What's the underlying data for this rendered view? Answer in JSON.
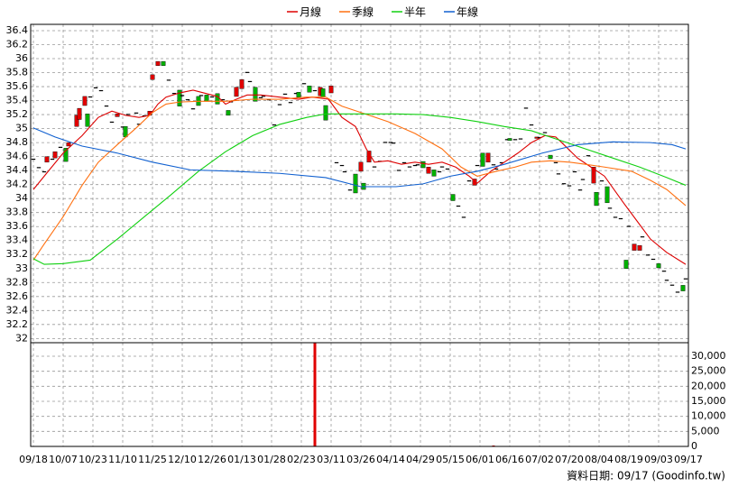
{
  "chart_data": [
    {
      "type": "candlestick",
      "grid": true,
      "legend_position": "top",
      "up_color": "#e00000",
      "down_color": "#00b000",
      "flat_color": "#000000",
      "xlim": [
        0,
        243
      ],
      "xticks": [
        {
          "value": 1,
          "label": "09/18"
        },
        {
          "value": 12,
          "label": "10/07"
        },
        {
          "value": 23,
          "label": "10/23"
        },
        {
          "value": 34,
          "label": "11/10"
        },
        {
          "value": 45,
          "label": "11/25"
        },
        {
          "value": 56,
          "label": "12/10"
        },
        {
          "value": 67,
          "label": "12/26"
        },
        {
          "value": 78,
          "label": "01/13"
        },
        {
          "value": 89,
          "label": "01/28"
        },
        {
          "value": 100,
          "label": "02/23"
        },
        {
          "value": 111,
          "label": "03/11"
        },
        {
          "value": 122,
          "label": "03/26"
        },
        {
          "value": 133,
          "label": "04/14"
        },
        {
          "value": 144,
          "label": "04/29"
        },
        {
          "value": 155,
          "label": "05/15"
        },
        {
          "value": 166,
          "label": "06/01"
        },
        {
          "value": 177,
          "label": "06/16"
        },
        {
          "value": 188,
          "label": "07/02"
        },
        {
          "value": 199,
          "label": "07/20"
        },
        {
          "value": 210,
          "label": "08/04"
        },
        {
          "value": 221,
          "label": "08/19"
        },
        {
          "value": 232,
          "label": "09/03"
        },
        {
          "value": 243,
          "label": "09/17"
        }
      ],
      "ylim": [
        31.94,
        36.49
      ],
      "yticks": [
        32,
        32.2,
        32.4,
        32.6,
        32.8,
        33,
        33.2,
        33.4,
        33.6,
        33.8,
        34,
        34.2,
        34.4,
        34.6,
        34.8,
        35,
        35.2,
        35.4,
        35.6,
        35.8,
        36,
        36.2,
        36.4
      ],
      "candles": {
        "x": [
          1,
          3,
          5,
          6,
          8,
          9,
          11,
          13,
          14,
          17,
          18,
          20,
          21,
          22,
          24,
          26,
          28,
          30,
          32,
          34,
          35,
          36,
          39,
          40,
          42,
          44,
          45,
          47,
          49,
          51,
          53,
          55,
          56,
          58,
          60,
          62,
          63,
          65,
          67,
          69,
          71,
          73,
          74,
          76,
          78,
          80,
          81,
          83,
          85,
          86,
          88,
          90,
          92,
          94,
          96,
          98,
          99,
          101,
          103,
          105,
          107,
          108,
          109,
          111,
          113,
          115,
          116,
          118,
          120,
          122,
          123,
          125,
          127,
          129,
          131,
          133,
          134,
          136,
          138,
          140,
          142,
          143,
          145,
          147,
          149,
          151,
          152,
          154,
          156,
          158,
          160,
          162,
          164,
          165,
          167,
          169,
          171,
          172,
          174,
          176,
          177,
          179,
          181,
          183,
          185,
          187,
          188,
          190,
          192,
          194,
          195,
          197,
          199,
          201,
          203,
          204,
          206,
          208,
          209,
          211,
          213,
          214,
          216,
          218,
          220,
          221,
          223,
          225,
          226,
          228,
          230,
          232,
          234,
          235,
          237,
          239,
          241,
          242
        ],
        "open": [
          34.57,
          34.45,
          34.39,
          34.52,
          34.57,
          34.58,
          34.74,
          34.72,
          34.75,
          35.03,
          35.13,
          35.33,
          35.21,
          35.46,
          35.59,
          35.55,
          35.33,
          35.1,
          35.17,
          35.03,
          35.03,
          35.21,
          35.23,
          35.07,
          35.19,
          35.19,
          35.7,
          35.9,
          35.96,
          35.7,
          35.51,
          35.55,
          35.48,
          35.42,
          35.29,
          35.46,
          35.48,
          35.48,
          35.46,
          35.5,
          35.42,
          35.26,
          35.39,
          35.46,
          35.57,
          35.81,
          35.68,
          35.59,
          35.45,
          35.47,
          35.42,
          35.06,
          35.35,
          35.5,
          35.38,
          35.51,
          35.52,
          35.65,
          35.61,
          35.55,
          35.47,
          35.57,
          35.33,
          35.51,
          34.52,
          34.48,
          34.39,
          34.13,
          34.35,
          34.39,
          34.22,
          34.52,
          34.46,
          34.54,
          34.81,
          34.81,
          34.8,
          34.41,
          34.52,
          34.46,
          34.48,
          34.49,
          34.53,
          34.36,
          34.41,
          34.39,
          34.46,
          34.43,
          34.06,
          33.9,
          33.74,
          34.26,
          34.19,
          34.48,
          34.65,
          34.52,
          34.49,
          34.43,
          34.52,
          34.85,
          34.86,
          34.85,
          34.86,
          35.3,
          35.06,
          34.86,
          34.88,
          34.95,
          34.62,
          34.52,
          34.36,
          34.22,
          34.19,
          34.39,
          34.13,
          34.28,
          34.62,
          34.22,
          34.09,
          34.26,
          34.17,
          33.87,
          33.74,
          33.72,
          33.12,
          33.61,
          33.26,
          33.26,
          33.46,
          33.2,
          33.14,
          33.07,
          32.97,
          32.84,
          32.77,
          32.67,
          32.76,
          32.86
        ],
        "close": [
          34.57,
          34.45,
          34.39,
          34.6,
          34.57,
          34.67,
          34.74,
          34.53,
          34.8,
          35.19,
          35.29,
          35.46,
          35.03,
          35.46,
          35.59,
          35.55,
          35.33,
          35.1,
          35.21,
          35.03,
          34.88,
          35.21,
          35.23,
          35.07,
          35.19,
          35.25,
          35.77,
          35.96,
          35.9,
          35.7,
          35.51,
          35.32,
          35.48,
          35.42,
          35.29,
          35.33,
          35.48,
          35.39,
          35.46,
          35.35,
          35.42,
          35.19,
          35.39,
          35.59,
          35.7,
          35.81,
          35.68,
          35.39,
          35.45,
          35.47,
          35.42,
          35.06,
          35.35,
          35.5,
          35.38,
          35.51,
          35.45,
          35.65,
          35.52,
          35.55,
          35.59,
          35.45,
          35.12,
          35.61,
          34.52,
          34.48,
          34.39,
          34.13,
          34.08,
          34.52,
          34.13,
          34.68,
          34.46,
          34.54,
          34.81,
          34.81,
          34.8,
          34.41,
          34.52,
          34.46,
          34.48,
          34.49,
          34.44,
          34.45,
          34.32,
          34.39,
          34.46,
          34.43,
          33.97,
          33.9,
          33.74,
          34.26,
          34.28,
          34.48,
          34.46,
          34.65,
          34.49,
          34.43,
          34.52,
          34.85,
          34.83,
          34.85,
          34.86,
          35.3,
          35.06,
          34.88,
          34.88,
          34.95,
          34.57,
          34.52,
          34.36,
          34.22,
          34.19,
          34.39,
          34.13,
          34.28,
          34.62,
          34.45,
          33.9,
          34.26,
          33.94,
          33.87,
          33.74,
          33.72,
          33.0,
          33.61,
          33.35,
          33.33,
          33.46,
          33.2,
          33.14,
          33.01,
          32.97,
          32.84,
          32.77,
          32.67,
          32.68,
          32.86
        ]
      },
      "series": [
        {
          "name": "月線",
          "color": "#dd0000",
          "x": [
            1,
            5,
            12,
            19,
            25,
            30,
            35,
            40,
            44,
            47,
            50,
            55,
            60,
            64,
            69,
            72,
            76,
            80,
            85,
            92,
            99,
            104,
            110,
            115,
            120,
            124,
            127,
            132,
            137,
            142,
            147,
            152,
            157,
            162,
            165,
            170,
            175,
            180,
            185,
            190,
            194,
            197,
            202,
            207,
            212,
            219,
            224,
            229,
            235,
            242
          ],
          "values": [
            34.13,
            34.32,
            34.65,
            34.9,
            35.16,
            35.25,
            35.19,
            35.16,
            35.19,
            35.35,
            35.45,
            35.51,
            35.55,
            35.51,
            35.46,
            35.35,
            35.42,
            35.48,
            35.48,
            35.45,
            35.42,
            35.45,
            35.42,
            35.16,
            35.03,
            34.71,
            34.52,
            34.54,
            34.49,
            34.52,
            34.49,
            34.52,
            34.45,
            34.32,
            34.22,
            34.39,
            34.52,
            34.65,
            34.8,
            34.9,
            34.88,
            34.77,
            34.58,
            34.45,
            34.32,
            33.94,
            33.68,
            33.42,
            33.23,
            33.06
          ]
        },
        {
          "name": "季線",
          "color": "#ff7010",
          "x": [
            1,
            5,
            12,
            19,
            25,
            32,
            39,
            45,
            50,
            55,
            62,
            72,
            82,
            92,
            102,
            109,
            115,
            122,
            132,
            142,
            152,
            159,
            165,
            172,
            179,
            185,
            192,
            199,
            205,
            212,
            222,
            229,
            235,
            242
          ],
          "values": [
            33.12,
            33.35,
            33.74,
            34.19,
            34.52,
            34.77,
            35.01,
            35.23,
            35.35,
            35.38,
            35.39,
            35.39,
            35.42,
            35.42,
            35.45,
            35.45,
            35.32,
            35.23,
            35.1,
            34.93,
            34.71,
            34.45,
            34.32,
            34.39,
            34.45,
            34.52,
            34.54,
            34.52,
            34.49,
            34.45,
            34.39,
            34.26,
            34.13,
            33.9
          ]
        },
        {
          "name": "半年",
          "color": "#10d010",
          "x": [
            1,
            5,
            12,
            22,
            32,
            42,
            52,
            62,
            72,
            82,
            92,
            102,
            109,
            115,
            125,
            135,
            145,
            155,
            165,
            175,
            185,
            195,
            205,
            215,
            225,
            235,
            242
          ],
          "values": [
            33.14,
            33.06,
            33.07,
            33.12,
            33.42,
            33.74,
            34.06,
            34.39,
            34.67,
            34.9,
            35.06,
            35.16,
            35.21,
            35.21,
            35.21,
            35.21,
            35.2,
            35.16,
            35.1,
            35.03,
            34.97,
            34.84,
            34.71,
            34.58,
            34.45,
            34.3,
            34.19
          ]
        },
        {
          "name": "年線",
          "color": "#1060d0",
          "x": [
            1,
            9,
            19,
            32,
            45,
            59,
            75,
            92,
            109,
            122,
            135,
            145,
            155,
            165,
            175,
            189,
            202,
            215,
            229,
            237,
            242
          ],
          "values": [
            35.01,
            34.88,
            34.75,
            34.65,
            34.52,
            34.41,
            34.39,
            34.36,
            34.3,
            34.17,
            34.17,
            34.21,
            34.32,
            34.39,
            34.49,
            34.65,
            34.77,
            34.81,
            34.8,
            34.77,
            34.71
          ]
        }
      ]
    },
    {
      "type": "bar",
      "color": "#e00000",
      "grid": true,
      "xlim": [
        0,
        243
      ],
      "x": [
        105,
        171
      ],
      "values": [
        34400,
        300
      ],
      "ylim": [
        0,
        34500
      ],
      "yticks": [
        0,
        {
          "value": 5000,
          "label": "5,000"
        },
        {
          "value": 10000,
          "label": "10,000"
        },
        {
          "value": 15000,
          "label": "15,000"
        },
        {
          "value": 20000,
          "label": "20,000"
        },
        {
          "value": 25000,
          "label": "25,000"
        },
        {
          "value": 30000,
          "label": "30,000"
        }
      ]
    }
  ],
  "footer": "資料日期: 09/17  (Goodinfo.tw)"
}
